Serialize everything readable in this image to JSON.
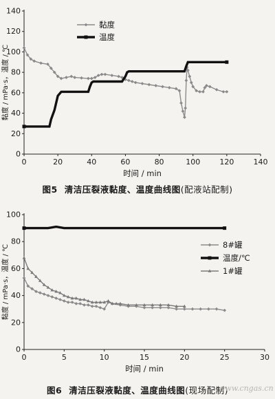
{
  "chart_data": [
    {
      "type": "line",
      "figure_label": "图5",
      "title": "清洁压裂液黏度、温度曲线图",
      "title_note": "(配液站配制)",
      "xlabel": "时间 / min",
      "ylabel": "黏度 / mPa·s，温度 / ℃",
      "xlim": [
        0,
        140
      ],
      "ylim": [
        0,
        140
      ],
      "xticks": [
        "0",
        "20",
        "40",
        "60",
        "80",
        "100",
        "120",
        "140"
      ],
      "yticks": [
        "0",
        "20",
        "40",
        "60",
        "80",
        "100",
        "120",
        "140"
      ],
      "legend_position": "top-center",
      "series": [
        {
          "name": "黏度",
          "style": "diamond-line",
          "color": "#8a8a8a",
          "x": [
            0,
            2,
            4,
            6,
            10,
            14,
            16,
            18,
            20,
            22,
            25,
            28,
            30,
            34,
            38,
            40,
            42,
            44,
            46,
            48,
            52,
            56,
            58,
            60,
            62,
            64,
            66,
            70,
            74,
            78,
            82,
            86,
            90,
            92,
            93,
            94,
            95,
            95.5,
            96,
            96.5,
            97,
            98,
            99,
            100,
            102,
            104,
            106,
            107,
            108,
            110,
            114,
            118,
            120
          ],
          "y": [
            104,
            97,
            93,
            91,
            89,
            88,
            84,
            80,
            76,
            74,
            75,
            76,
            75,
            74.5,
            74,
            74,
            75,
            77,
            78,
            78,
            77,
            76,
            75,
            73,
            72,
            71,
            70,
            69,
            68,
            67,
            66,
            65,
            64,
            62,
            50,
            42,
            36,
            45,
            72,
            85,
            82,
            76,
            70,
            66,
            62,
            61,
            61,
            65,
            67,
            66,
            63,
            61,
            61
          ]
        },
        {
          "name": "温度",
          "style": "square-thick-line",
          "color": "#111111",
          "x": [
            0,
            15,
            16,
            18,
            20,
            22,
            38,
            39,
            40,
            41,
            58,
            60,
            61,
            62,
            95,
            96,
            97,
            99,
            120
          ],
          "y": [
            27,
            27,
            34,
            43,
            57,
            61,
            61,
            66,
            70,
            71,
            71,
            76,
            80,
            81,
            81,
            86,
            90,
            90,
            90
          ]
        }
      ]
    },
    {
      "type": "line",
      "figure_label": "图6",
      "title": "清洁压裂液黏度、温度曲线图",
      "title_note": "(现场配制)",
      "xlabel": "时间 / min",
      "ylabel": "黏度 / mPa·s，温度 / ℃",
      "xlim": [
        0,
        30
      ],
      "ylim": [
        0,
        100
      ],
      "xticks": [
        "0",
        "5",
        "10",
        "15",
        "20",
        "25",
        "30"
      ],
      "yticks": [
        "0",
        "20",
        "40",
        "60",
        "80",
        "100"
      ],
      "legend_position": "right",
      "series": [
        {
          "name": "8#罐",
          "style": "diamond-line",
          "color": "#8a8a8a",
          "x": [
            0,
            0.5,
            1,
            1.5,
            2,
            2.5,
            3,
            3.5,
            4,
            4.5,
            5,
            5.5,
            6,
            6.5,
            7,
            7.5,
            8,
            8.5,
            9,
            9.5,
            10,
            10.5,
            11,
            12,
            13,
            14,
            15,
            16,
            17,
            18,
            19,
            20,
            21,
            22,
            23,
            24,
            25
          ],
          "y": [
            53,
            47,
            45,
            43,
            42,
            41,
            40,
            39,
            38,
            37,
            36,
            35,
            35,
            34,
            34,
            33,
            33,
            32,
            32,
            31,
            30,
            35,
            34,
            33,
            32,
            32,
            31,
            31,
            31,
            31,
            30,
            30,
            30,
            30,
            30,
            30,
            29
          ]
        },
        {
          "name": "温度/℃",
          "style": "square-thick-line",
          "color": "#111111",
          "x": [
            0,
            3,
            4,
            5,
            25
          ],
          "y": [
            90,
            90,
            91,
            90,
            90
          ]
        },
        {
          "name": "1#罐",
          "style": "triangle-line",
          "color": "#7a7a7a",
          "x": [
            0,
            0.5,
            1,
            1.5,
            2,
            2.5,
            3,
            3.5,
            4,
            4.5,
            5,
            5.5,
            6,
            6.5,
            7,
            7.5,
            8,
            8.5,
            9,
            9.5,
            10,
            10.5,
            11,
            11.5,
            12,
            13,
            14,
            15,
            16,
            17,
            18,
            19,
            20
          ],
          "y": [
            68,
            60,
            57,
            54,
            51,
            48,
            46,
            44,
            43,
            42,
            40,
            39,
            38,
            38,
            37,
            37,
            36,
            35,
            35,
            35,
            35,
            36,
            34,
            34,
            34,
            33,
            33,
            33,
            33,
            33,
            33,
            32,
            32
          ]
        }
      ]
    }
  ],
  "watermark": "www.cngas.cn"
}
